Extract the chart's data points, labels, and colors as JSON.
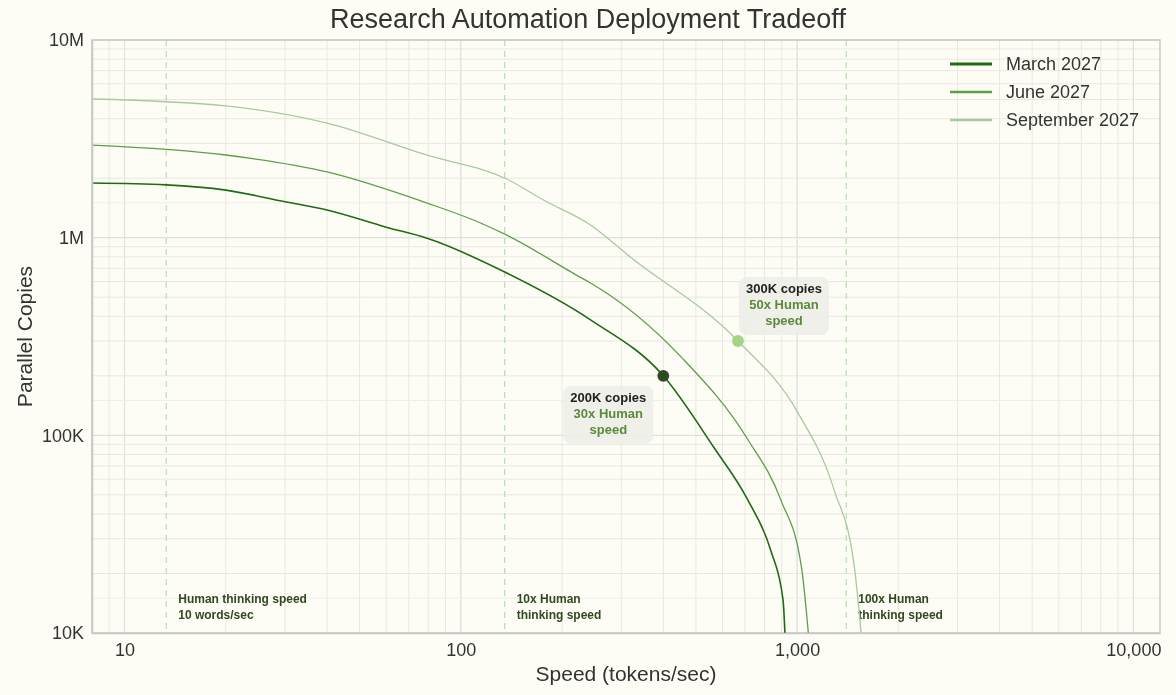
{
  "chart_data": {
    "type": "line",
    "title": "Research Automation Deployment Tradeoff",
    "xlabel": "Speed (tokens/sec)",
    "ylabel": "Parallel Copies",
    "log": "xy",
    "grid": true,
    "legend": "top right",
    "marker": "none",
    "line_style": "solid",
    "xlim": [
      8,
      12000
    ],
    "ylim": [
      10000,
      10000000
    ],
    "xticks": [
      10,
      100,
      {
        "value": 1000,
        "label": "1,000"
      },
      {
        "value": 10000,
        "label": "10,000"
      }
    ],
    "yticks": [
      {
        "value": 10000,
        "label": "10K"
      },
      {
        "value": 100000,
        "label": "100K"
      },
      {
        "value": 1000000,
        "label": "1M"
      },
      {
        "value": 10000000,
        "label": "10M"
      }
    ],
    "series": [
      {
        "name": "March 2027",
        "color": "#1f6b14",
        "x": [
          8,
          13.3,
          20,
          30,
          40,
          60,
          79,
          137,
          243,
          400,
          565,
          714,
          836,
          908,
          920
        ],
        "values": [
          1890000,
          1850000,
          1740000,
          1520000,
          1380000,
          1130000,
          995000,
          662000,
          384000,
          200000,
          87000,
          47000,
          26000,
          14700,
          10000
        ]
      },
      {
        "name": "June 2027",
        "color": "#5c9e4c",
        "x": [
          8,
          20,
          40,
          79,
          114,
          137,
          226,
          243,
          451,
          714,
          895,
          1030,
          1080
        ],
        "values": [
          2940000,
          2620000,
          2150000,
          1500000,
          1190000,
          1030000,
          632000,
          590000,
          250000,
          95000,
          47000,
          21600,
          10000
        ]
      },
      {
        "name": "September 2027",
        "color": "#a9c9a0",
        "x": [
          8,
          20,
          40,
          79,
          137,
          176,
          243,
          319,
          667,
          1006,
          1288,
          1480,
          1550
        ],
        "values": [
          5030000,
          4640000,
          3800000,
          2620000,
          1980000,
          1550000,
          1160000,
          798000,
          300000,
          130000,
          53000,
          21600,
          10000
        ]
      },
      {
        "type": "scatter",
        "color": "#2d4a22",
        "marker": "circle",
        "x": [
          400
        ],
        "values": [
          200000
        ]
      },
      {
        "type": "scatter",
        "color": "#a3d48a",
        "marker": "circle",
        "x": [
          667
        ],
        "values": [
          300000
        ]
      }
    ],
    "ref_lines": [
      {
        "axis": "x",
        "value": 13.3,
        "label": "Human thinking speed\n10 words/sec",
        "color": "#b9dcae",
        "line_style": "dashed"
      },
      {
        "axis": "x",
        "value": 135,
        "label": "10x Human\nthinking speed",
        "color": "#b9dcae",
        "line_style": "dashed"
      },
      {
        "axis": "x",
        "value": 1400,
        "label": "100x Human\nthinking speed",
        "color": "#b9dcae",
        "line_style": "dashed"
      }
    ],
    "annotations": [
      {
        "text": "200K copies\n30x Human\nspeed",
        "x": 400,
        "y": 200000
      },
      {
        "text": "300K copies\n50x Human\nspeed",
        "x": 667,
        "y": 300000
      }
    ]
  }
}
